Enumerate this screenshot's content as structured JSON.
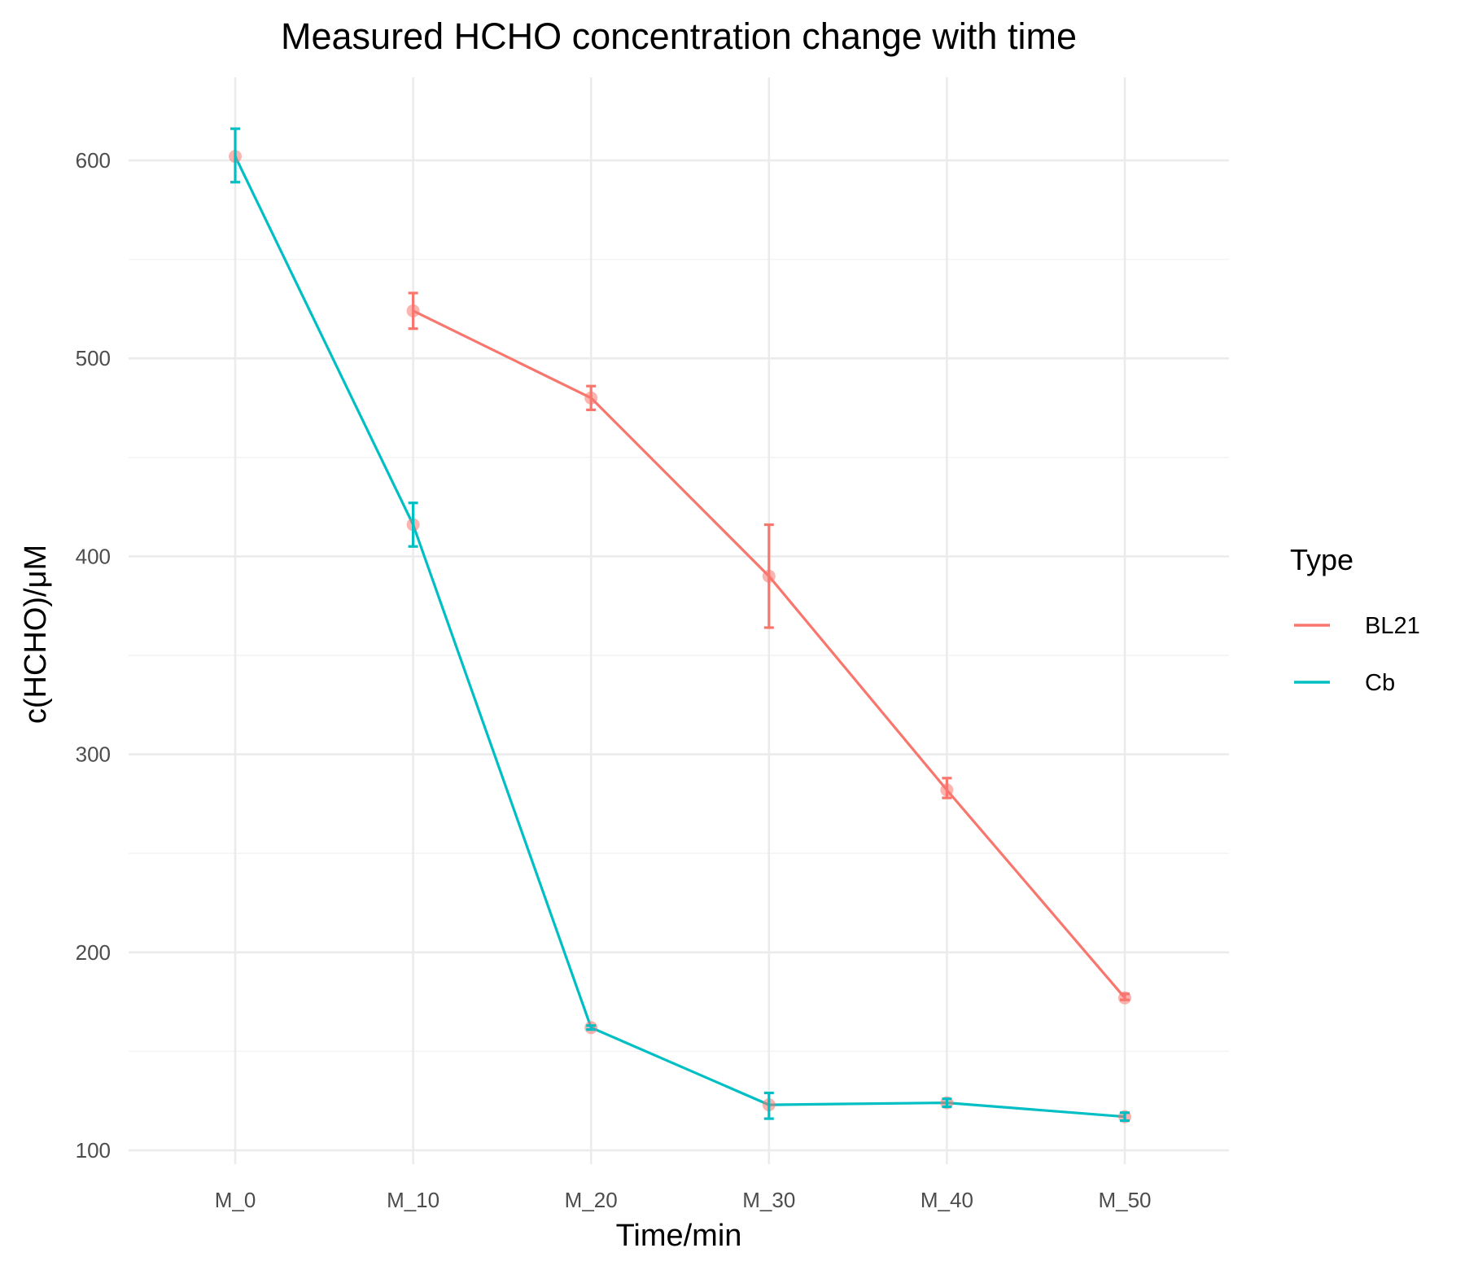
{
  "chart_data": {
    "type": "line",
    "title": "Measured HCHO concentration change with time",
    "xlabel": "Time/min",
    "ylabel": "c(HCHO)/μM",
    "categories": [
      "M_0",
      "M_10",
      "M_20",
      "M_30",
      "M_40",
      "M_50"
    ],
    "y_ticks": [
      100,
      200,
      300,
      400,
      500,
      600
    ],
    "ylim": [
      92,
      641
    ],
    "grid": true,
    "legend": {
      "title": "Type",
      "position": "right"
    },
    "series": [
      {
        "name": "BL21",
        "color": "#F8766D",
        "values": [
          null,
          524,
          480,
          390,
          282,
          177
        ],
        "err_low": [
          null,
          515,
          474,
          364,
          278,
          176
        ],
        "err_high": [
          null,
          533,
          486,
          416,
          288,
          179
        ]
      },
      {
        "name": "Cb",
        "color": "#00BFC4",
        "values": [
          602,
          416,
          162,
          123,
          124,
          117
        ],
        "err_low": [
          589,
          405,
          161,
          116,
          122,
          115
        ],
        "err_high": [
          616,
          427,
          163,
          129,
          126,
          119
        ]
      }
    ]
  }
}
